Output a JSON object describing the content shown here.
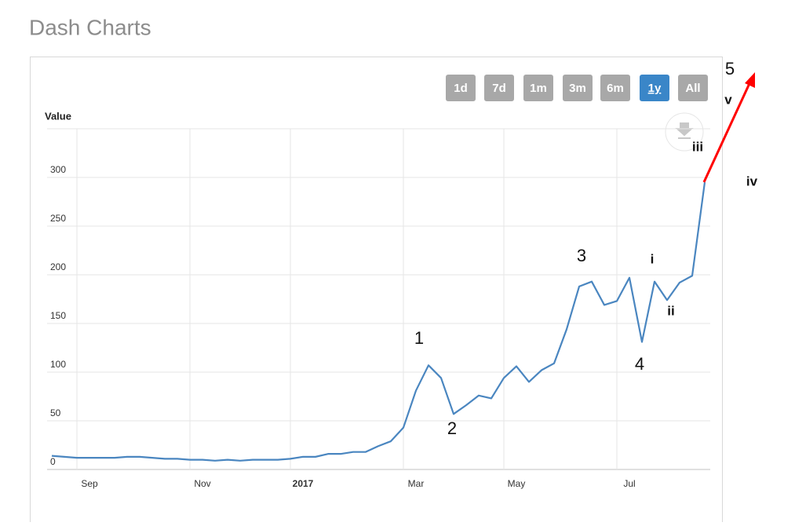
{
  "header": {
    "title": "Dash Charts"
  },
  "range_buttons": [
    "1d",
    "7d",
    "1m",
    "3m",
    "6m",
    "1y",
    "All"
  ],
  "selected_button": 5,
  "chart_data": {
    "type": "line",
    "y_label": "Value",
    "categories": [
      null,
      null,
      "Sep",
      null,
      null,
      null,
      null,
      null,
      null,
      null,
      null,
      "Nov",
      null,
      null,
      null,
      null,
      null,
      null,
      null,
      "2017",
      null,
      null,
      null,
      null,
      null,
      null,
      null,
      null,
      "Mar",
      null,
      null,
      null,
      null,
      null,
      null,
      null,
      "May",
      null,
      null,
      null,
      null,
      null,
      null,
      null,
      null,
      "Jul",
      null,
      null,
      null,
      null,
      null,
      null,
      null
    ],
    "values": [
      14,
      13,
      12,
      12,
      12,
      12,
      13,
      13,
      12,
      11,
      11,
      10,
      10,
      9,
      10,
      9,
      10,
      10,
      10,
      11,
      13,
      13,
      16,
      16,
      18,
      18,
      24,
      29,
      43,
      81,
      107,
      94,
      57,
      66,
      76,
      73,
      94,
      106,
      90,
      102,
      109,
      144,
      188,
      193,
      169,
      173,
      197,
      131,
      193,
      174,
      192,
      199,
      295
    ],
    "color": "#4a86c0",
    "ylim": [
      0,
      350
    ],
    "yticks": [
      0,
      50,
      100,
      150,
      200,
      250,
      300
    ],
    "grid": true,
    "annotations": [
      "1",
      "2",
      "3",
      "4",
      "5",
      "i",
      "ii",
      "iii",
      "iv",
      "v"
    ]
  }
}
